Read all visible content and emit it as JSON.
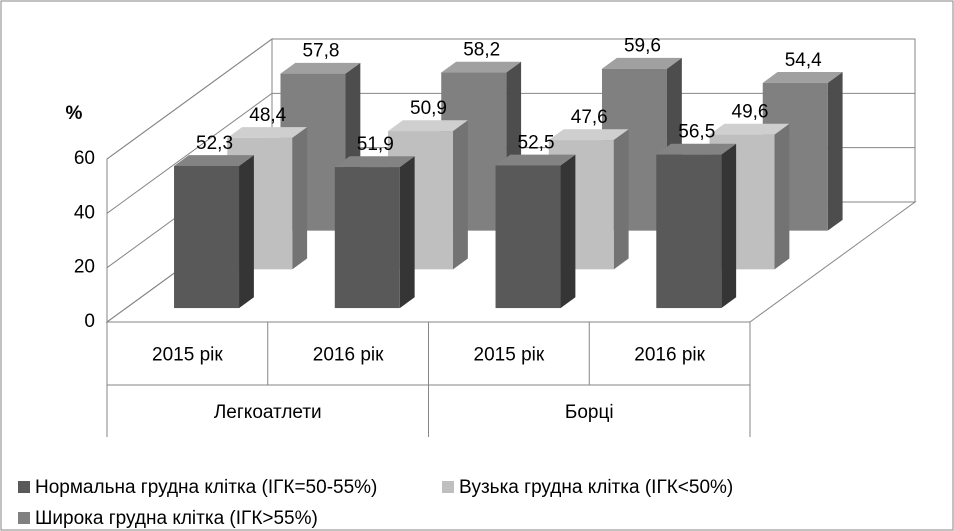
{
  "chart_data": {
    "type": "bar3d",
    "y_label": "%",
    "categories": [
      "2015 рік",
      "2016 рік",
      "2015 рік",
      "2016 рік"
    ],
    "groups": [
      "Легкоатлети",
      "Борці"
    ],
    "series": [
      {
        "name": "Нормальна грудна клітка (ІГК=50-55%)",
        "color": "#595959",
        "values": [
          52.3,
          51.9,
          52.5,
          56.5
        ],
        "value_labels": [
          "52,3",
          "51,9",
          "52,5",
          "56,5"
        ]
      },
      {
        "name": "Вузька грудна клітка (ІГК<50%)",
        "color": "#bfbfbf",
        "values": [
          48.4,
          50.9,
          47.6,
          49.6
        ],
        "value_labels": [
          "48,4",
          "50,9",
          "47,6",
          "49,6"
        ]
      },
      {
        "name": "Широка грудна клітка (ІГК>55%)",
        "color": "#808080",
        "values": [
          57.8,
          58.2,
          59.6,
          54.4
        ],
        "value_labels": [
          "57,8",
          "58,2",
          "59,6",
          "54,4"
        ]
      }
    ],
    "ylim": [
      0,
      60
    ],
    "yticks": [
      0,
      20,
      40,
      60
    ],
    "grid": true,
    "legend": "bottom"
  }
}
